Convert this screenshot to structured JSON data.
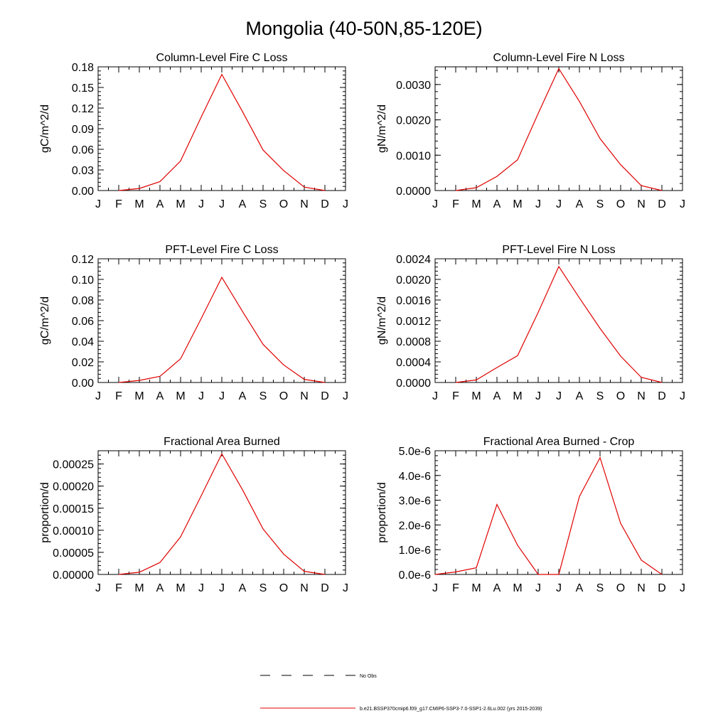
{
  "title": "Mongolia (40-50N,85-120E)",
  "series_color": "#e00000",
  "month_labels": [
    "J",
    "F",
    "M",
    "A",
    "M",
    "J",
    "J",
    "A",
    "S",
    "O",
    "N",
    "D",
    "J"
  ],
  "chart_data": [
    {
      "type": "line",
      "title": "Column-Level Fire C Loss",
      "ylabel": "gC/m^2/d",
      "ylim": [
        0,
        0.18
      ],
      "yticks": [
        0,
        0.03,
        0.06,
        0.09,
        0.12,
        0.15,
        0.18
      ],
      "ytick_labels": [
        "0.00",
        "0.03",
        "0.06",
        "0.09",
        "0.12",
        "0.15",
        "0.18"
      ],
      "x": [
        "F",
        "M",
        "A",
        "M",
        "J",
        "J",
        "A",
        "S",
        "O",
        "N",
        "D"
      ],
      "values": [
        0.0,
        0.003,
        0.013,
        0.043,
        0.107,
        0.169,
        0.115,
        0.059,
        0.029,
        0.005,
        0.0
      ]
    },
    {
      "type": "line",
      "title": "Column-Level Fire N Loss",
      "ylabel": "gN/m^2/d",
      "ylim": [
        0,
        0.0035
      ],
      "yticks": [
        0,
        0.001,
        0.002,
        0.003
      ],
      "ytick_labels": [
        "0.0000",
        "0.0010",
        "0.0020",
        "0.0030"
      ],
      "x": [
        "F",
        "M",
        "A",
        "M",
        "J",
        "J",
        "A",
        "S",
        "O",
        "N",
        "D"
      ],
      "values": [
        0.0,
        8e-05,
        0.0004,
        0.00087,
        0.00218,
        0.00345,
        0.00252,
        0.00147,
        0.00073,
        0.00014,
        0.0
      ]
    },
    {
      "type": "line",
      "title": "PFT-Level Fire C Loss",
      "ylabel": "gC/m^2/d",
      "ylim": [
        0,
        0.12
      ],
      "yticks": [
        0,
        0.02,
        0.04,
        0.06,
        0.08,
        0.1,
        0.12
      ],
      "ytick_labels": [
        "0.00",
        "0.02",
        "0.04",
        "0.06",
        "0.08",
        "0.10",
        "0.12"
      ],
      "x": [
        "F",
        "M",
        "A",
        "M",
        "J",
        "J",
        "A",
        "S",
        "O",
        "N",
        "D"
      ],
      "values": [
        0.0,
        0.002,
        0.006,
        0.023,
        0.062,
        0.102,
        0.069,
        0.037,
        0.017,
        0.003,
        0.0
      ]
    },
    {
      "type": "line",
      "title": "PFT-Level Fire N Loss",
      "ylabel": "gN/m^2/d",
      "ylim": [
        0,
        0.0024
      ],
      "yticks": [
        0,
        0.0004,
        0.0008,
        0.0012,
        0.0016,
        0.002,
        0.0024
      ],
      "ytick_labels": [
        "0.0000",
        "0.0004",
        "0.0008",
        "0.0012",
        "0.0016",
        "0.0020",
        "0.0024"
      ],
      "x": [
        "F",
        "M",
        "A",
        "M",
        "J",
        "J",
        "A",
        "S",
        "O",
        "N",
        "D"
      ],
      "values": [
        0.0,
        5e-05,
        0.00029,
        0.00052,
        0.00136,
        0.00225,
        0.00164,
        0.00105,
        0.00051,
        0.0001,
        0.0
      ]
    },
    {
      "type": "line",
      "title": "Fractional Area Burned",
      "ylabel": "proportion/d",
      "ylim": [
        0,
        0.00028
      ],
      "yticks": [
        0,
        5e-05,
        0.0001,
        0.00015,
        0.0002,
        0.00025
      ],
      "ytick_labels": [
        "0.00000",
        "0.00005",
        "0.00010",
        "0.00015",
        "0.00020",
        "0.00025"
      ],
      "x": [
        "F",
        "M",
        "A",
        "M",
        "J",
        "J",
        "A",
        "S",
        "O",
        "N",
        "D"
      ],
      "values": [
        0.0,
        5e-06,
        2.7e-05,
        8.5e-05,
        0.000178,
        0.000273,
        0.000192,
        0.000103,
        4.6e-05,
        7e-06,
        0.0
      ]
    },
    {
      "type": "line",
      "title": "Fractional Area Burned - Crop",
      "ylabel": "proportion/d",
      "ylim": [
        0,
        5e-06
      ],
      "yticks": [
        0,
        1e-06,
        2e-06,
        3e-06,
        4e-06,
        5e-06
      ],
      "ytick_labels": [
        "0.0e-6",
        "1.0e-6",
        "2.0e-6",
        "3.0e-6",
        "4.0e-6",
        "5.0e-6"
      ],
      "x": [
        "J",
        "F",
        "M",
        "A",
        "M",
        "J",
        "J",
        "A",
        "S",
        "O",
        "N",
        "D"
      ],
      "values": [
        0.0,
        1e-07,
        2.7e-07,
        2.83e-06,
        1.18e-06,
        0.0,
        0.0,
        3.15e-06,
        4.72e-06,
        2.06e-06,
        5.8e-07,
        0.0
      ]
    }
  ],
  "legend": [
    {
      "label": "No Obs",
      "style": "dashed",
      "color": "#000000"
    },
    {
      "label": "b.e21.BSSP370cmip6.f09_g17.CMIP6-SSP3-7.0-SSP1-2.6Lu.002 (yrs 2015-2039)",
      "style": "solid",
      "color": "#e00000"
    }
  ]
}
